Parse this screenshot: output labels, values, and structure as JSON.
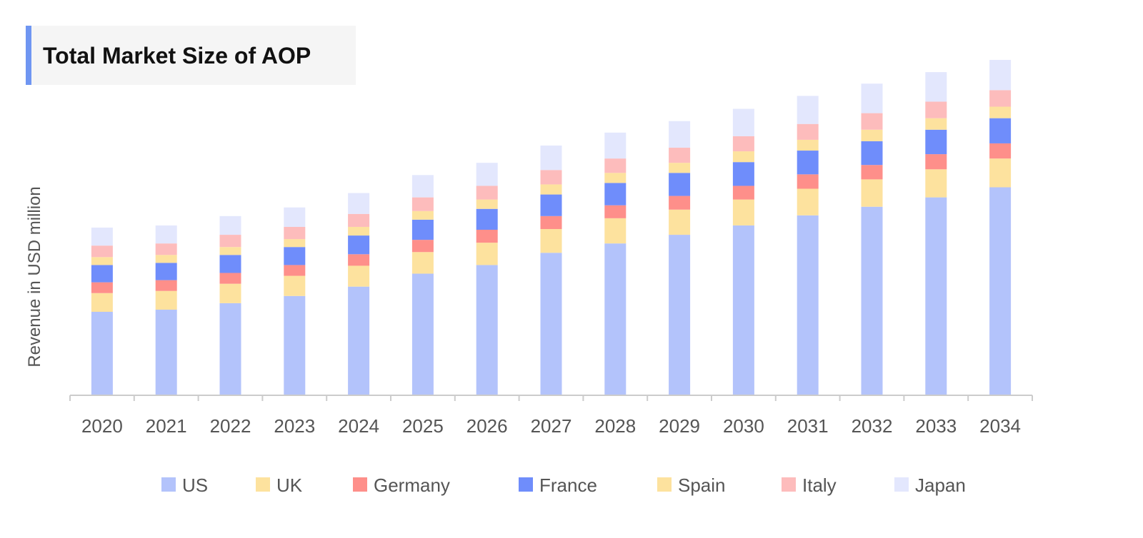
{
  "chart_data": {
    "type": "bar",
    "stacked": true,
    "title": "Total Market Size of AOP",
    "xlabel": "",
    "ylabel": "Revenue in USD million",
    "categories": [
      "2020",
      "2021",
      "2022",
      "2023",
      "2024",
      "2025",
      "2026",
      "2027",
      "2028",
      "2029",
      "2030",
      "2031",
      "2032",
      "2033",
      "2034"
    ],
    "ylim": [
      0,
      460
    ],
    "grid": false,
    "legend_position": "bottom",
    "series": [
      {
        "name": "US",
        "color": "#b3c3fb",
        "values": [
          116,
          119,
          128,
          138,
          151,
          169,
          181,
          198,
          211,
          223,
          236,
          250,
          262,
          275,
          289
        ]
      },
      {
        "name": "UK",
        "color": "#fde29e",
        "values": [
          26,
          26,
          27,
          28,
          29,
          30,
          31,
          33,
          35,
          35,
          36,
          37,
          38,
          39,
          40
        ]
      },
      {
        "name": "Germany",
        "color": "#fe8f8a",
        "values": [
          15,
          15,
          15,
          15,
          16,
          17,
          18,
          18,
          18,
          19,
          19,
          20,
          20,
          21,
          21
        ]
      },
      {
        "name": "France",
        "color": "#6f8dfb",
        "values": [
          24,
          24,
          25,
          25,
          26,
          28,
          29,
          30,
          31,
          32,
          33,
          33,
          33,
          34,
          35
        ]
      },
      {
        "name": "Spain",
        "color": "#fde29e",
        "values": [
          11,
          11,
          11,
          11,
          12,
          12,
          13,
          14,
          14,
          14,
          15,
          15,
          16,
          16,
          16
        ]
      },
      {
        "name": "Italy",
        "color": "#fdbcbc",
        "values": [
          16,
          16,
          17,
          17,
          18,
          19,
          19,
          20,
          20,
          21,
          21,
          22,
          23,
          23,
          23
        ]
      },
      {
        "name": "Japan",
        "color": "#e3e7fd",
        "values": [
          25,
          25,
          26,
          27,
          29,
          31,
          32,
          34,
          36,
          37,
          38,
          39,
          41,
          41,
          42
        ]
      }
    ]
  }
}
